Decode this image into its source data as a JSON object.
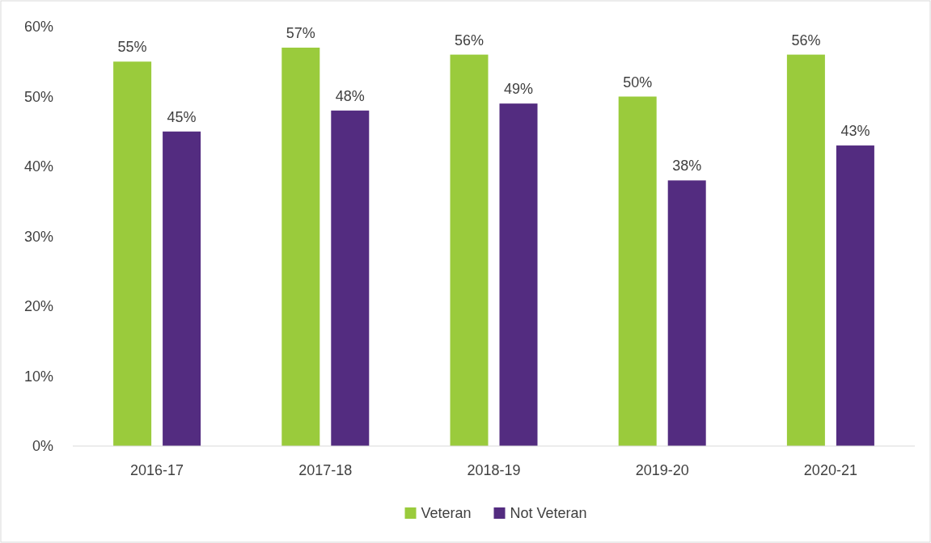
{
  "chart_data": {
    "type": "bar",
    "categories": [
      "2016-17",
      "2017-18",
      "2018-19",
      "2019-20",
      "2020-21"
    ],
    "series": [
      {
        "name": "Veteran",
        "color": "#9acb3c",
        "values": [
          55,
          57,
          56,
          50,
          56
        ],
        "value_labels": [
          "55%",
          "57%",
          "56%",
          "50%",
          "56%"
        ]
      },
      {
        "name": "Not Veteran",
        "color": "#532c80",
        "values": [
          45,
          48,
          49,
          38,
          43
        ],
        "value_labels": [
          "45%",
          "48%",
          "49%",
          "38%",
          "43%"
        ]
      }
    ],
    "ylim": [
      0,
      60
    ],
    "yticks": [
      {
        "value": 0,
        "label": "0%"
      },
      {
        "value": 10,
        "label": "10%"
      },
      {
        "value": 20,
        "label": "20%"
      },
      {
        "value": 30,
        "label": "30%"
      },
      {
        "value": 40,
        "label": "40%"
      },
      {
        "value": 50,
        "label": "50%"
      },
      {
        "value": 60,
        "label": "60%"
      }
    ],
    "grid": false,
    "legend": "bottom"
  }
}
